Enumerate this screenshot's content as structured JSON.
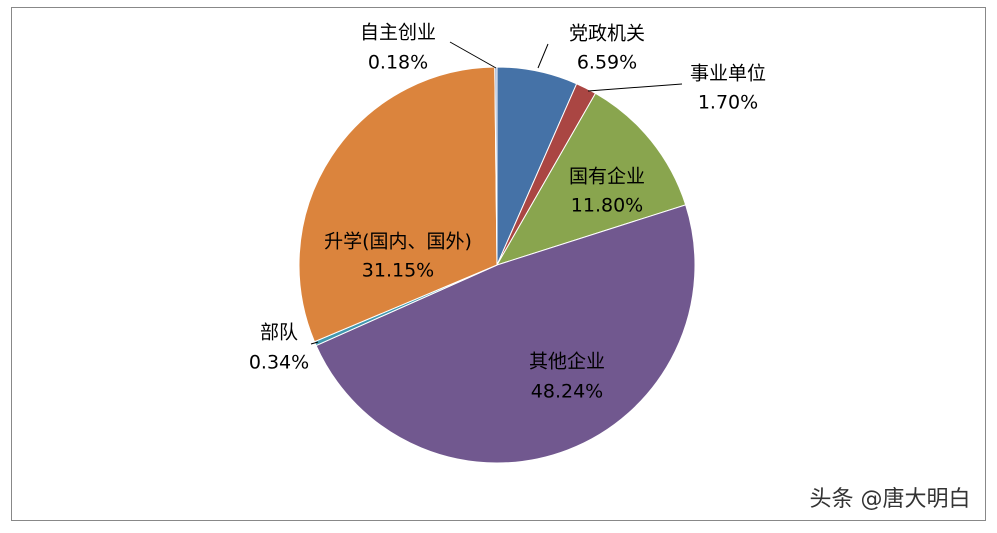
{
  "chart_data": {
    "type": "pie",
    "categories": [
      "党政机关",
      "事业单位",
      "国有企业",
      "其他企业",
      "部队",
      "升学(国内、国外)",
      "自主创业"
    ],
    "values": [
      6.59,
      1.7,
      11.8,
      48.24,
      0.34,
      31.15,
      0.18
    ],
    "value_labels": [
      "6.59%",
      "1.70%",
      "11.80%",
      "48.24%",
      "0.34%",
      "31.15%",
      "0.18%"
    ],
    "colors": [
      "#4572a7",
      "#aa4643",
      "#89a54e",
      "#71588f",
      "#4198af",
      "#db843d",
      "#93a9cf"
    ],
    "watermark": "头条 @唐大明白"
  }
}
